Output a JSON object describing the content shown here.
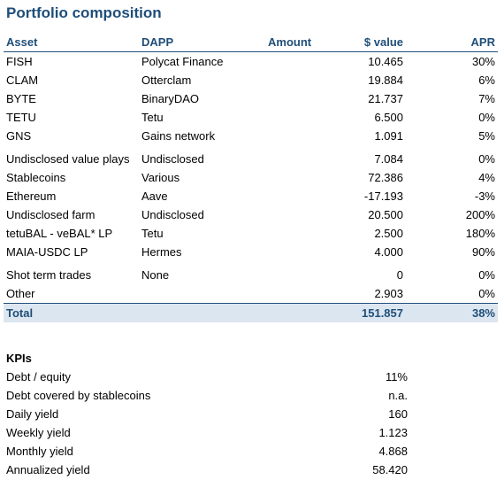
{
  "title": "Portfolio composition",
  "headers": {
    "asset": "Asset",
    "dapp": "DAPP",
    "amount": "Amount",
    "value": "$ value",
    "apr": "APR"
  },
  "rows": [
    {
      "asset": "FISH",
      "dapp": "Polycat Finance",
      "amount": "",
      "value": "10.465",
      "apr": "30%"
    },
    {
      "asset": "CLAM",
      "dapp": "Otterclam",
      "amount": "",
      "value": "19.884",
      "apr": "6%"
    },
    {
      "asset": "BYTE",
      "dapp": "BinaryDAO",
      "amount": "",
      "value": "21.737",
      "apr": "7%"
    },
    {
      "asset": "TETU",
      "dapp": "Tetu",
      "amount": "",
      "value": "6.500",
      "apr": "0%"
    },
    {
      "asset": "GNS",
      "dapp": "Gains network",
      "amount": "",
      "value": "1.091",
      "apr": "5%"
    },
    {
      "asset": "Undisclosed value plays",
      "dapp": "Undisclosed",
      "amount": "",
      "value": "7.084",
      "apr": "0%"
    },
    {
      "asset": "Stablecoins",
      "dapp": "Various",
      "amount": "",
      "value": "72.386",
      "apr": "4%"
    },
    {
      "asset": "Ethereum",
      "dapp": "Aave",
      "amount": "",
      "value": "-17.193",
      "apr": "-3%"
    },
    {
      "asset": "Undisclosed farm",
      "dapp": "Undisclosed",
      "amount": "",
      "value": "20.500",
      "apr": "200%"
    },
    {
      "asset": "tetuBAL - veBAL* LP",
      "dapp": "Tetu",
      "amount": "",
      "value": "2.500",
      "apr": "180%"
    },
    {
      "asset": "MAIA-USDC LP",
      "dapp": "Hermes",
      "amount": "",
      "value": "4.000",
      "apr": "90%"
    },
    {
      "asset": "Shot term trades",
      "dapp": "None",
      "amount": "",
      "value": "0",
      "apr": "0%"
    },
    {
      "asset": "Other",
      "dapp": "",
      "amount": "",
      "value": "2.903",
      "apr": "0%"
    }
  ],
  "total": {
    "label": "Total",
    "value": "151.857",
    "apr": "38%"
  },
  "kpis": {
    "heading": "KPIs",
    "items": [
      {
        "label": "Debt / equity",
        "value": "11%"
      },
      {
        "label": "Debt covered by stablecoins",
        "value": "n.a."
      },
      {
        "label": "Daily yield",
        "value": "160"
      },
      {
        "label": "Weekly yield",
        "value": "1.123"
      },
      {
        "label": "Monthly yield",
        "value": "4.868"
      },
      {
        "label": "Annualized yield",
        "value": "58.420"
      }
    ]
  },
  "colors": {
    "accent": "#1f4e79",
    "total_bg": "#dce6f0"
  }
}
